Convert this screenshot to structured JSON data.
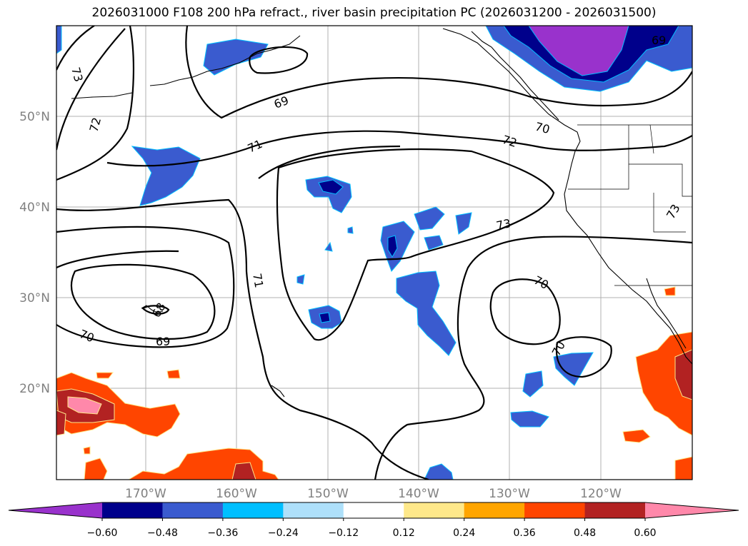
{
  "title": "2026031000 F108 200 hPa refract., river basin precipitation PC (2026031200 - 2026031500)",
  "lat_ticks": [
    "50°N",
    "40°N",
    "30°N",
    "20°N"
  ],
  "lon_ticks": [
    "170°W",
    "160°W",
    "150°W",
    "140°W",
    "130°W",
    "120°W"
  ],
  "contour_labels": [
    "73",
    "72",
    "69",
    "70",
    "71",
    "72",
    "73",
    "70",
    "71",
    "68",
    "69",
    "70",
    "70",
    "69",
    "73"
  ],
  "colorbar": {
    "colors": [
      "#9932cc",
      "#00008b",
      "#3a5bcf",
      "#00bfff",
      "#aee0fa",
      "#ffffff",
      "#fee88a",
      "#ffa500",
      "#ff4500",
      "#b22222",
      "#ff88aa"
    ],
    "labels": [
      "−0.60",
      "−0.48",
      "−0.36",
      "−0.24",
      "−0.12",
      "0.12",
      "0.24",
      "0.36",
      "0.48",
      "0.60"
    ]
  }
}
